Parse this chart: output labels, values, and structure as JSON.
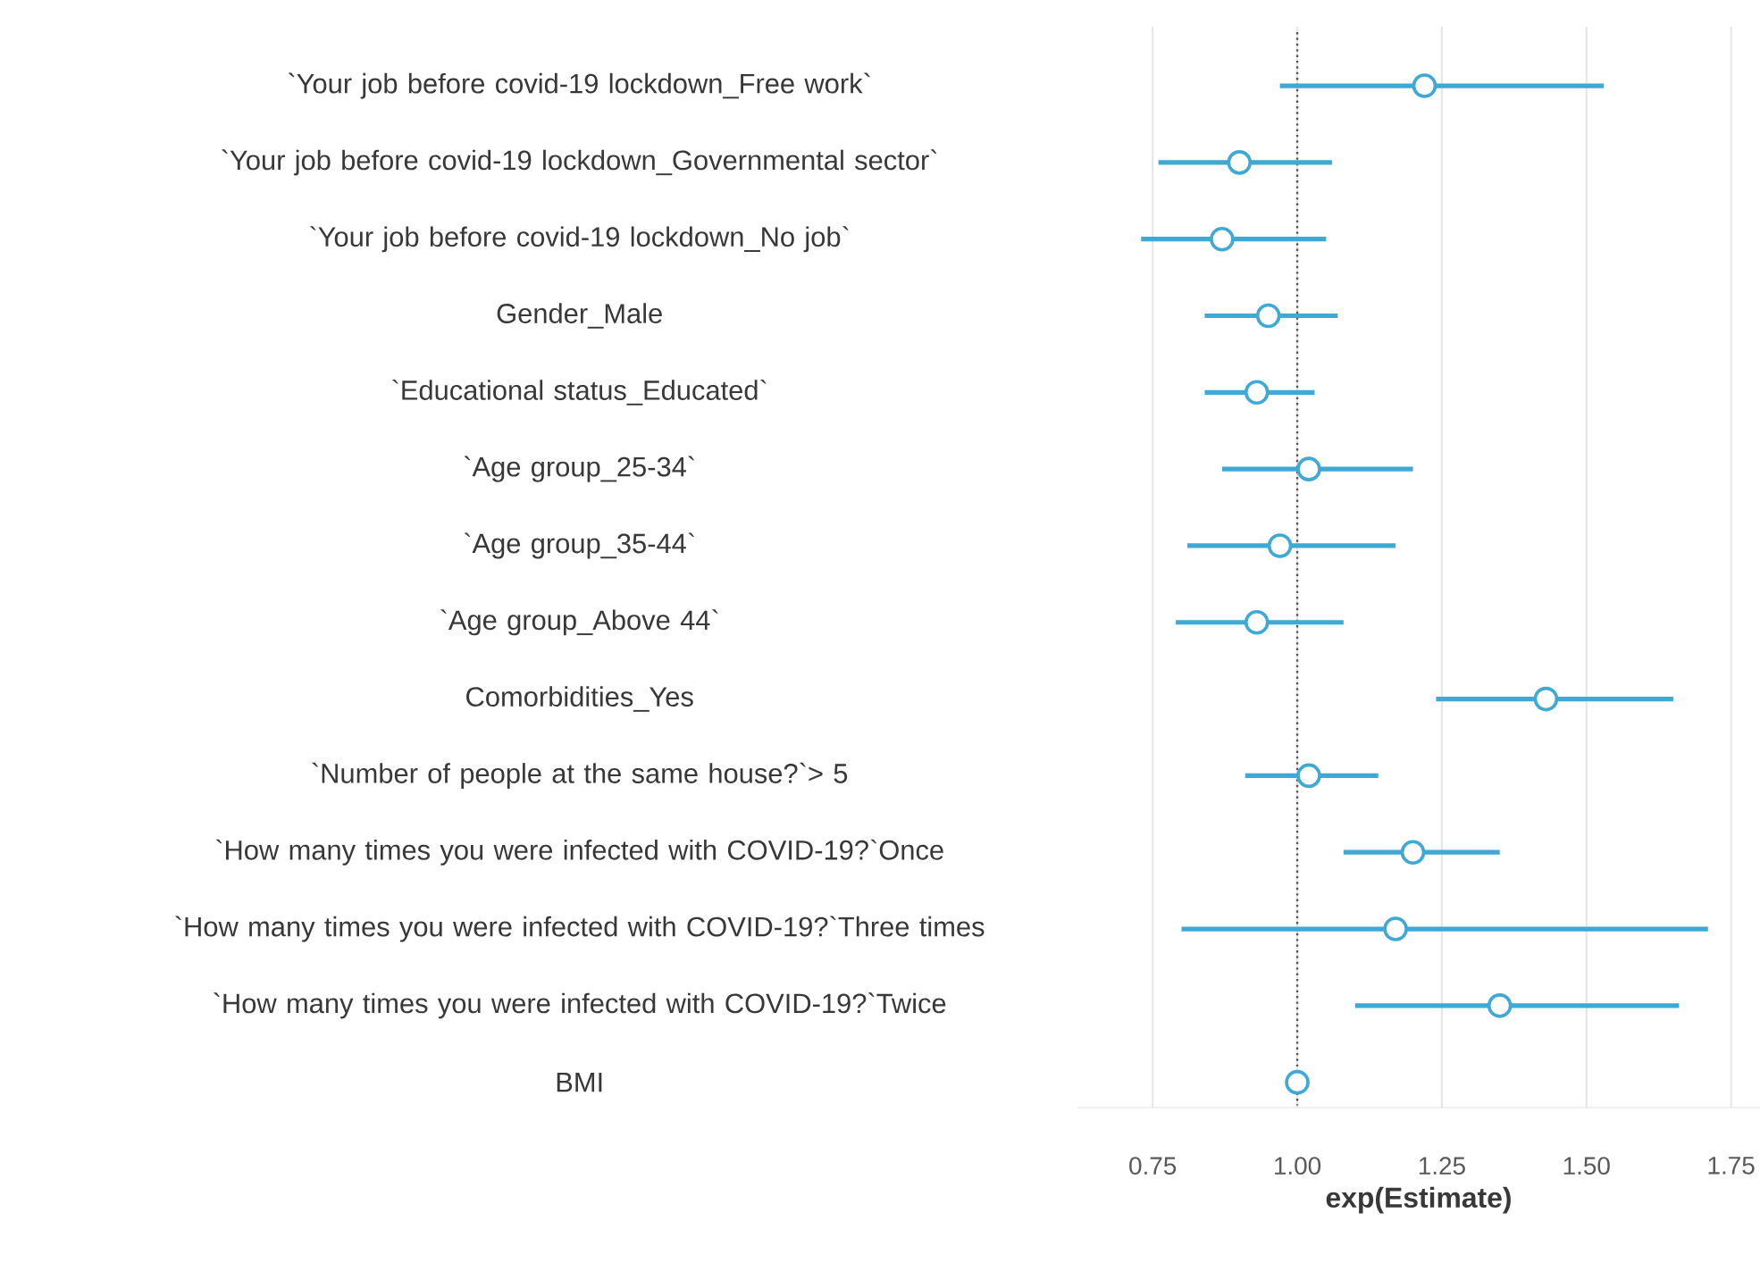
{
  "chart_data": {
    "type": "scatter",
    "orientation": "horizontal",
    "categories": [
      "`Your job before covid-19 lockdown_Free work`",
      "`Your job before covid-19 lockdown_Governmental sector`",
      "`Your job before covid-19 lockdown_No job`",
      "Gender_Male",
      "`Educational status_Educated`",
      "`Age group_25-34`",
      "`Age group_35-44`",
      "`Age group_Above 44`",
      "Comorbidities_Yes",
      "`Number of people at the same house?`> 5",
      "`How many times you were infected with COVID-19?`Once",
      "`How many times you were infected with COVID-19?`Three times",
      "`How many times you were infected with COVID-19?`Twice",
      "BMI"
    ],
    "values": [
      1.22,
      0.9,
      0.87,
      0.95,
      0.93,
      1.02,
      0.97,
      0.93,
      1.43,
      1.02,
      1.2,
      1.17,
      1.35,
      1.0
    ],
    "errors": [
      [
        0.97,
        1.53
      ],
      [
        0.76,
        1.06
      ],
      [
        0.73,
        1.05
      ],
      [
        0.84,
        1.07
      ],
      [
        0.84,
        1.03
      ],
      [
        0.87,
        1.2
      ],
      [
        0.81,
        1.17
      ],
      [
        0.79,
        1.08
      ],
      [
        1.24,
        1.65
      ],
      [
        0.91,
        1.14
      ],
      [
        1.08,
        1.35
      ],
      [
        0.8,
        1.71
      ],
      [
        1.1,
        1.66
      ],
      null
    ],
    "color": "#3fa9d5",
    "marker": "circle",
    "xlabel": "exp(Estimate)",
    "xlim": [
      0.62,
      1.8
    ],
    "xticks": [
      0.75,
      {
        "value": 1,
        "label": "1.00"
      },
      1.25,
      {
        "value": 1.5,
        "label": "1.50"
      },
      1.75
    ],
    "grid": "x",
    "ref_lines": [
      {
        "axis": "x",
        "value": 1,
        "line_style": "dotted",
        "color": "#555555"
      }
    ]
  }
}
